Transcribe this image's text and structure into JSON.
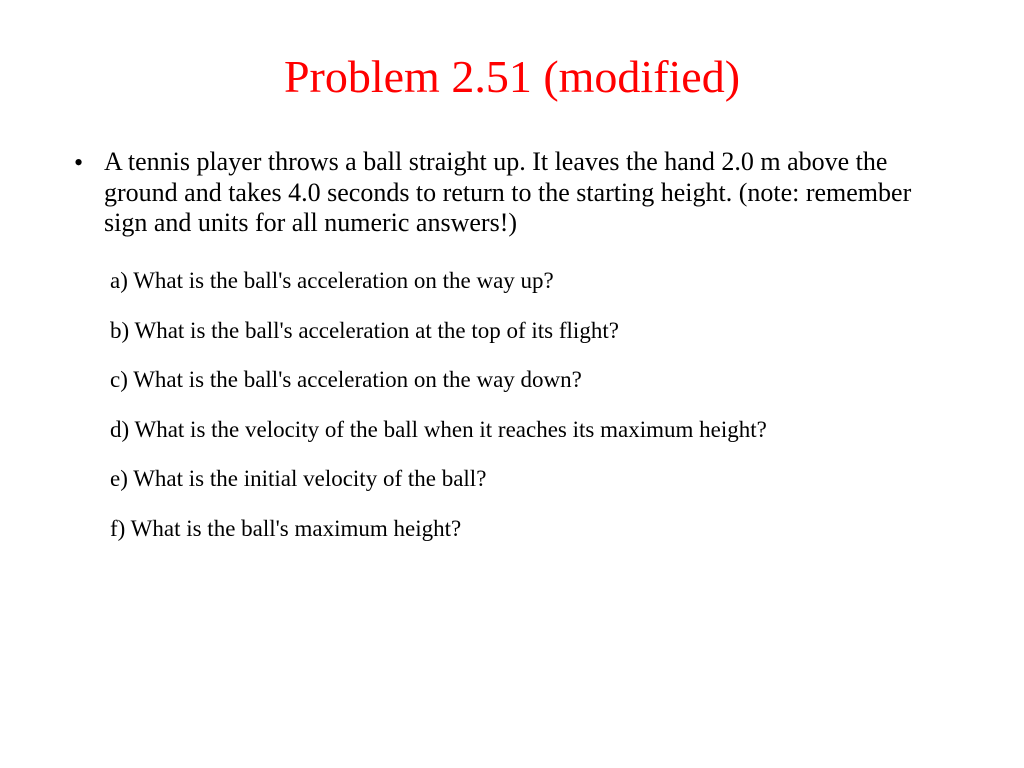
{
  "title": {
    "text": "Problem 2.51 (modified)",
    "color": "#ff0000",
    "fontsize": 46
  },
  "body": {
    "bullet_glyph": "•",
    "intro_fontsize": 26,
    "intro": "A tennis player throws a ball straight up. It leaves the hand 2.0 m above the ground and takes 4.0 seconds to return to the starting height. (note: remember sign and units for all numeric answers!)",
    "sub_fontsize": 23,
    "subitems": [
      "a) What is the ball's acceleration on the way up?",
      "b) What is the ball's acceleration at the top of its flight?",
      "c) What is the ball's acceleration on the way down?",
      "d) What is the velocity of the ball when it reaches its maximum height?",
      "e) What is the initial velocity of the ball?",
      "f) What is the ball's maximum height?"
    ]
  },
  "colors": {
    "text": "#000000",
    "background": "#ffffff"
  }
}
